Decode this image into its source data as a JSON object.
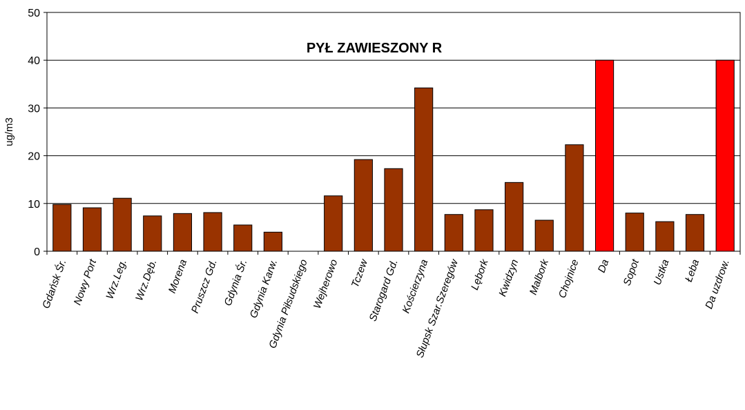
{
  "chart_data": {
    "type": "bar",
    "title": "PYŁ ZAWIESZONY  R",
    "y_label": "ug/m3",
    "categories": [
      "Gdańsk Śr.",
      "Nowy Port",
      "Wrz.Leg.",
      "Wrz.Dęb.",
      "Morena",
      "Pruszcz Gd.",
      "Gdynia Śr.",
      "Gdynia Karw.",
      "Gdynia Piłsudskiego",
      "Wejherowo",
      "Tczew",
      "Starogard Gd.",
      "Kościerzyna",
      "Słupsk Szar.Szeregów",
      "Lębork",
      "Kwidzyn",
      "Malbork",
      "Chojnice",
      "Da",
      "Sopot",
      "Ustka",
      "Łeba",
      "Da uzdrow."
    ],
    "values": [
      9.8,
      9.1,
      11.1,
      7.4,
      7.9,
      8.1,
      5.5,
      4.0,
      0,
      11.6,
      19.2,
      17.3,
      34.2,
      7.7,
      8.7,
      14.4,
      6.5,
      22.3,
      40,
      8.0,
      6.2,
      7.7,
      40
    ],
    "colors": [
      "#993300",
      "#993300",
      "#993300",
      "#993300",
      "#993300",
      "#993300",
      "#993300",
      "#993300",
      "#993300",
      "#993300",
      "#993300",
      "#993300",
      "#993300",
      "#993300",
      "#993300",
      "#993300",
      "#993300",
      "#993300",
      "#ff0000",
      "#993300",
      "#993300",
      "#993300",
      "#ff0000"
    ],
    "ylim": [
      0,
      50
    ],
    "yticks": [
      0,
      10,
      20,
      30,
      40,
      50
    ],
    "grid": true
  }
}
